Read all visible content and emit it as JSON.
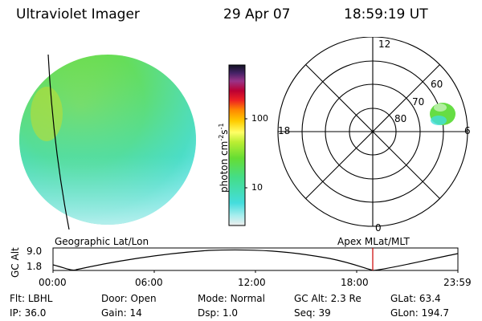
{
  "header": {
    "title": "Ultraviolet Imager",
    "date": "29 Apr 07",
    "time": "18:59:19 UT"
  },
  "colorbar": {
    "unit_label": "photon cm",
    "unit_exp1": "-2",
    "unit_mid": "s",
    "unit_exp2": "-1",
    "ticks": [
      "100",
      "10"
    ]
  },
  "polar_plot": {
    "mlt_labels": {
      "top": "12",
      "left": "18",
      "right": "6",
      "bottom": "0"
    },
    "lat_labels": [
      "60",
      "70",
      "80"
    ]
  },
  "timeline": {
    "left_title": "Geographic Lat/Lon",
    "right_title": "Apex MLat/MLT",
    "y_axis_label": "GC Alt",
    "y_ticks": [
      "9.0",
      "1.8"
    ],
    "x_ticks": [
      "00:00",
      "06:00",
      "12:00",
      "18:00",
      "23:59"
    ],
    "marker_color": "#cc0000"
  },
  "status": {
    "row1": [
      {
        "label": "Flt:",
        "value": "LBHL"
      },
      {
        "label": "Door:",
        "value": "Open"
      },
      {
        "label": "Mode:",
        "value": "Normal"
      },
      {
        "label": "GC Alt:",
        "value": "2.3 Re"
      },
      {
        "label": "GLat:",
        "value": "63.4"
      }
    ],
    "row2": [
      {
        "label": "IP:",
        "value": "36.0"
      },
      {
        "label": "Gain:",
        "value": "14"
      },
      {
        "label": "Dsp:",
        "value": "1.0"
      },
      {
        "label": "Seq:",
        "value": "39"
      },
      {
        "label": "GLon:",
        "value": "194.7"
      }
    ]
  },
  "colors": {
    "image_green": "#66dd44",
    "image_cyan": "#44dddd",
    "image_yellowgreen": "#aadd33"
  }
}
